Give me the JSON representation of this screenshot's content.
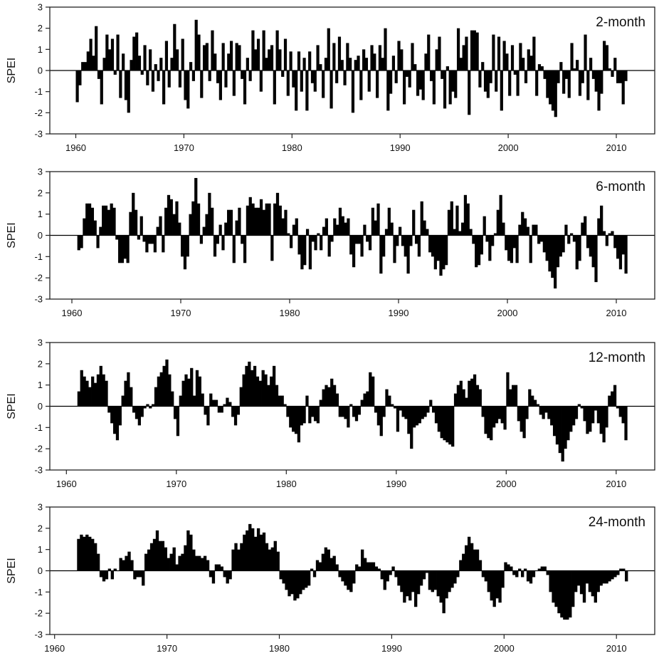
{
  "chart_data": [
    {
      "type": "bar",
      "title": "2-month",
      "ylabel": "SPEI",
      "xlabel": "",
      "ylim": [
        -3,
        3
      ],
      "yticks": [
        "-3",
        "-2",
        "-1",
        "0",
        "1",
        "2",
        "3"
      ],
      "xticks": [
        "1960",
        "1970",
        "1980",
        "1990",
        "2000",
        "2010"
      ],
      "start_year": 1960,
      "step_years": 0.25,
      "values": [
        -1.5,
        -0.7,
        0.4,
        0.4,
        0.9,
        1.5,
        0.7,
        2.1,
        -0.4,
        -1.6,
        0.6,
        1.7,
        1.0,
        1.5,
        -0.2,
        1.7,
        -1.3,
        0.8,
        -1.4,
        -2.0,
        0.5,
        1.6,
        1.8,
        0.7,
        -0.2,
        1.2,
        -0.7,
        1.0,
        -1.0,
        0.3,
        -0.5,
        0.6,
        -1.6,
        1.4,
        -0.8,
        0.6,
        2.2,
        1.0,
        -0.8,
        1.5,
        -1.4,
        -1.8,
        0.4,
        -0.5,
        2.4,
        1.7,
        -1.3,
        1.2,
        1.3,
        -0.5,
        1.9,
        0.8,
        -0.6,
        -1.4,
        1.3,
        -0.8,
        0.8,
        1.4,
        -1.2,
        1.3,
        1.2,
        -0.4,
        -1.6,
        0.6,
        -0.5,
        1.9,
        1.0,
        1.5,
        -1.0,
        1.9,
        0.6,
        1.0,
        1.2,
        -1.6,
        1.9,
        1.0,
        -0.3,
        1.5,
        -1.2,
        0.9,
        -0.8,
        -1.9,
        0.9,
        -1.0,
        0.6,
        -1.9,
        0.9,
        -0.6,
        -1.0,
        1.2,
        0.3,
        -1.3,
        0.6,
        2.0,
        -1.8,
        1.3,
        -0.6,
        1.6,
        0.5,
        -0.7,
        1.3,
        0.6,
        -2.0,
        0.5,
        0.7,
        -1.4,
        1.0,
        0.6,
        -1.0,
        1.2,
        0.8,
        -1.3,
        1.2,
        0.6,
        2.0,
        -1.9,
        -1.1,
        0.7,
        -0.6,
        1.4,
        1.0,
        -1.6,
        -0.3,
        -0.8,
        1.3,
        0.3,
        -1.2,
        -0.9,
        -1.4,
        0.8,
        1.7,
        -0.5,
        -1.6,
        1.0,
        1.6,
        -0.4,
        -1.8,
        0.2,
        -1.6,
        -1.0,
        -1.3,
        2.0,
        0.6,
        1.2,
        1.6,
        -2.1,
        1.9,
        1.9,
        1.8,
        -0.8,
        0.4,
        -1.0,
        -1.3,
        -0.6,
        1.7,
        -1.0,
        1.6,
        -1.9,
        1.4,
        0.8,
        -1.2,
        1.2,
        -0.2,
        -1.2,
        1.3,
        0.6,
        -0.6,
        1.0,
        0.7,
        1.6,
        -1.2,
        0.3,
        0.2,
        -0.4,
        -1.3,
        -1.6,
        -1.9,
        -2.2,
        -0.6,
        0.4,
        -1.1,
        -0.4,
        -1.3,
        1.3,
        0.1,
        0.5,
        -1.2,
        -0.6,
        1.7,
        -1.4,
        0.6,
        -0.4,
        -1.0,
        -1.9,
        -1.1,
        1.4,
        1.2,
        0.1,
        -0.3,
        0.6,
        -0.6,
        -0.6,
        -1.6,
        -0.5
      ]
    },
    {
      "type": "bar",
      "title": "6-month",
      "ylabel": "SPEI",
      "xlabel": "",
      "ylim": [
        -3,
        3
      ],
      "yticks": [
        "-3",
        "-2",
        "-1",
        "0",
        "1",
        "2",
        "3"
      ],
      "xticks": [
        "1960",
        "1970",
        "1980",
        "1990",
        "2000",
        "2010"
      ],
      "start_year": 1960,
      "step_years": 0.25,
      "values": [
        0,
        0,
        -0.7,
        -0.6,
        0.8,
        1.5,
        1.5,
        1.3,
        0.7,
        -0.6,
        0.4,
        1.4,
        1.4,
        1.2,
        1.5,
        1.3,
        -0.2,
        -1.3,
        -1.3,
        -1.1,
        -1.3,
        1.1,
        2.0,
        1.2,
        -0.2,
        0.9,
        -0.3,
        -0.8,
        -0.4,
        -0.4,
        -0.8,
        0.4,
        0.9,
        -0.8,
        1.3,
        1.9,
        1.7,
        1.0,
        1.6,
        0.6,
        -1.0,
        -1.6,
        -1.0,
        1.0,
        1.6,
        2.7,
        1.5,
        -0.4,
        0.4,
        1.0,
        2.0,
        1.3,
        -1.0,
        -0.4,
        0.5,
        -0.7,
        0.6,
        1.2,
        1.2,
        -1.3,
        0.7,
        1.3,
        -0.4,
        -1.3,
        1.4,
        1.8,
        1.5,
        1.3,
        1.3,
        1.7,
        1.2,
        1.5,
        1.5,
        -1.2,
        1.5,
        2.0,
        1.4,
        0.8,
        1.2,
        0.1,
        -0.6,
        0.5,
        0.8,
        -0.9,
        -1.6,
        -1.4,
        0.3,
        -1.6,
        -0.3,
        -0.7,
        0.1,
        -0.7,
        0.4,
        0.8,
        -1.0,
        -0.3,
        0.8,
        0.5,
        1.3,
        0.9,
        0.6,
        0.8,
        -0.9,
        -1.5,
        -0.4,
        -0.4,
        -1.0,
        0.5,
        -0.3,
        -0.7,
        1.3,
        0.7,
        1.5,
        -1.8,
        -1.0,
        0.3,
        1.3,
        0.6,
        -1.3,
        -0.5,
        0.4,
        -0.5,
        -1.0,
        -1.8,
        -0.5,
        1.2,
        -0.4,
        -1.0,
        1.6,
        0.7,
        0.3,
        -0.8,
        -1.0,
        -1.6,
        -1.2,
        -1.9,
        -1.6,
        -1.4,
        1.2,
        1.6,
        0.3,
        1.4,
        0.2,
        0.6,
        1.9,
        1.5,
        0.3,
        -0.4,
        -1.5,
        -1.4,
        -0.9,
        0.9,
        -0.3,
        -1.2,
        -0.5,
        0.1,
        1.2,
        1.9,
        0.6,
        -0.7,
        -1.2,
        -1.3,
        -0.6,
        -1.3,
        0.5,
        1.1,
        0.8,
        0.4,
        -1.3,
        0.5,
        0.5,
        -0.4,
        -0.3,
        -0.8,
        -1.2,
        -1.7,
        -2.0,
        -2.5,
        -1.5,
        -1.0,
        -0.8,
        0.5,
        -0.4,
        0.1,
        -0.3,
        -1.6,
        -1.2,
        0.6,
        0.9,
        -0.6,
        -1.0,
        -1.5,
        -2.2,
        0.8,
        1.4,
        0.2,
        -0.5,
        0.1,
        0.2,
        -0.6,
        -1.1,
        -1.6,
        -0.9,
        -1.8
      ]
    },
    {
      "type": "bar",
      "title": "12-month",
      "ylabel": "SPEI",
      "xlabel": "",
      "ylim": [
        -3,
        3
      ],
      "yticks": [
        "-3",
        "-2",
        "-1",
        "0",
        "1",
        "2",
        "3"
      ],
      "xticks": [
        "1960",
        "1970",
        "1980",
        "1990",
        "2000",
        "2010"
      ],
      "start_year": 1960,
      "step_years": 0.25,
      "values": [
        0,
        0,
        0,
        0,
        0.7,
        1.7,
        1.4,
        1.2,
        0.9,
        1.4,
        1.1,
        1.5,
        1.9,
        1.5,
        1.2,
        -0.3,
        -0.8,
        -1.3,
        -1.6,
        -0.9,
        0.5,
        1.2,
        1.6,
        0.9,
        -0.3,
        -0.6,
        -0.9,
        -0.5,
        -0.1,
        0.1,
        -0.1,
        0.1,
        0.9,
        1.4,
        1.6,
        1.9,
        2.2,
        1.5,
        0.7,
        -0.6,
        -1.4,
        0.5,
        1.2,
        1.5,
        1.3,
        1.8,
        0.5,
        1.7,
        1.4,
        0.6,
        -0.4,
        -0.9,
        0.6,
        0.3,
        0.3,
        -0.3,
        -0.3,
        0.1,
        0.4,
        0.2,
        -0.5,
        -0.9,
        -0.4,
        0.9,
        1.5,
        1.9,
        2.1,
        1.7,
        1.9,
        1.4,
        1.2,
        1.7,
        1.5,
        1.0,
        1.4,
        1.9,
        1.0,
        0.5,
        0.5,
        0.1,
        -0.5,
        -1.0,
        -1.2,
        -1.3,
        -1.7,
        -0.9,
        -0.8,
        0.5,
        -0.8,
        -0.5,
        -0.7,
        -0.8,
        0.3,
        0.8,
        1.0,
        0.9,
        1.3,
        1.0,
        0.6,
        -0.5,
        -0.5,
        -0.6,
        -1.0,
        0.1,
        -0.5,
        -0.7,
        -0.4,
        0.3,
        0.6,
        0.7,
        1.6,
        1.4,
        -0.3,
        -0.9,
        -1.4,
        -0.5,
        0.8,
        0.5,
        0.1,
        -0.1,
        -1.2,
        -0.2,
        -0.5,
        -0.6,
        -1.3,
        -2.0,
        -1.0,
        -0.9,
        -0.8,
        -0.6,
        -0.5,
        -0.3,
        0.3,
        -0.3,
        -0.8,
        -1.2,
        -1.5,
        -1.6,
        -1.7,
        -1.8,
        -1.9,
        0.6,
        1.0,
        1.2,
        0.8,
        0.4,
        1.2,
        1.3,
        1.5,
        1.0,
        0.8,
        -0.5,
        -1.3,
        -1.5,
        -1.6,
        -1.0,
        -0.8,
        -0.6,
        -0.8,
        -1.1,
        1.6,
        0.8,
        1.0,
        1.0,
        -0.7,
        -1.2,
        -1.5,
        -0.6,
        0.8,
        0.5,
        0.3,
        0.1,
        -0.4,
        -0.6,
        -0.3,
        -0.6,
        -0.9,
        -1.4,
        -1.8,
        -2.2,
        -2.6,
        -2.0,
        -1.6,
        -1.2,
        -0.9,
        -0.6,
        0.1,
        -0.1,
        -0.7,
        -1.3,
        -1.2,
        -0.8,
        -0.2,
        -0.8,
        -1.3,
        -1.7,
        -1.0,
        0.5,
        0.7,
        1.0,
        -0.1,
        -0.5,
        -0.8,
        -1.6
      ]
    },
    {
      "type": "bar",
      "title": "24-month",
      "ylabel": "SPEI",
      "xlabel": "",
      "ylim": [
        -3,
        3
      ],
      "yticks": [
        "-3",
        "-2",
        "-1",
        "0",
        "1",
        "2",
        "3"
      ],
      "xticks": [
        "1960",
        "1970",
        "1980",
        "1990",
        "2000",
        "2010"
      ],
      "start_year": 1960,
      "step_years": 0.25,
      "values": [
        0,
        0,
        0,
        0,
        0,
        0,
        0,
        0,
        1.5,
        1.7,
        1.6,
        1.7,
        1.6,
        1.5,
        1.3,
        0.8,
        -0.3,
        -0.5,
        -0.4,
        0.1,
        -0.4,
        0.1,
        0.0,
        0.6,
        0.5,
        0.7,
        0.9,
        0.5,
        -0.4,
        -0.3,
        -0.3,
        -0.7,
        0.8,
        1.0,
        1.3,
        1.5,
        1.9,
        1.4,
        1.4,
        1.1,
        0.6,
        0.8,
        1.1,
        0.3,
        0.7,
        0.8,
        1.2,
        1.9,
        1.7,
        1.0,
        0.7,
        0.7,
        0.6,
        0.7,
        0.5,
        -0.3,
        -0.6,
        0.3,
        0.3,
        0.2,
        -0.3,
        -0.6,
        -0.4,
        1.0,
        1.3,
        1.0,
        1.3,
        1.7,
        1.9,
        2.2,
        2.0,
        1.6,
        2.0,
        1.7,
        1.8,
        1.3,
        1.0,
        1.1,
        1.4,
        0.9,
        -0.4,
        -0.6,
        -0.9,
        -1.2,
        -1.1,
        -1.4,
        -1.3,
        -1.1,
        -0.9,
        -0.8,
        -0.7,
        0.1,
        -0.3,
        0.5,
        0.4,
        0.8,
        1.1,
        1.0,
        0.6,
        0.7,
        0.3,
        -0.3,
        -0.5,
        -0.7,
        -0.9,
        -1.0,
        -0.6,
        0.3,
        0.2,
        1.0,
        0.6,
        0.4,
        0.4,
        0.4,
        0.2,
        0.1,
        -0.4,
        -0.9,
        -0.5,
        -0.2,
        0.2,
        -0.3,
        -0.7,
        -1.0,
        -1.5,
        -1.2,
        -1.4,
        -1.0,
        -1.7,
        -1.1,
        -0.7,
        -0.4,
        -0.1,
        -0.9,
        -1.0,
        -0.9,
        -1.2,
        -1.5,
        -2.0,
        -1.3,
        -1.0,
        -0.8,
        -0.6,
        -0.3,
        0.5,
        0.8,
        1.2,
        1.6,
        1.3,
        1.0,
        1.0,
        0.5,
        -0.3,
        -0.5,
        -1.0,
        -1.4,
        -1.7,
        -1.3,
        -1.5,
        -0.8,
        0.4,
        0.3,
        0.2,
        -0.2,
        -0.3,
        0.1,
        -0.3,
        0.1,
        -0.5,
        -0.6,
        -0.3,
        0.0,
        0.1,
        0.2,
        0.2,
        -0.2,
        -1.0,
        -1.5,
        -1.7,
        -2.0,
        -2.2,
        -2.3,
        -2.3,
        -2.2,
        -1.7,
        -1.0,
        -0.7,
        -1.1,
        -1.5,
        -0.6,
        -1.0,
        -1.2,
        -1.5,
        -1.0,
        -0.7,
        -0.6,
        -0.6,
        -0.5,
        -0.4,
        -0.3,
        -0.2,
        0.1,
        0.1,
        -0.5
      ]
    }
  ]
}
